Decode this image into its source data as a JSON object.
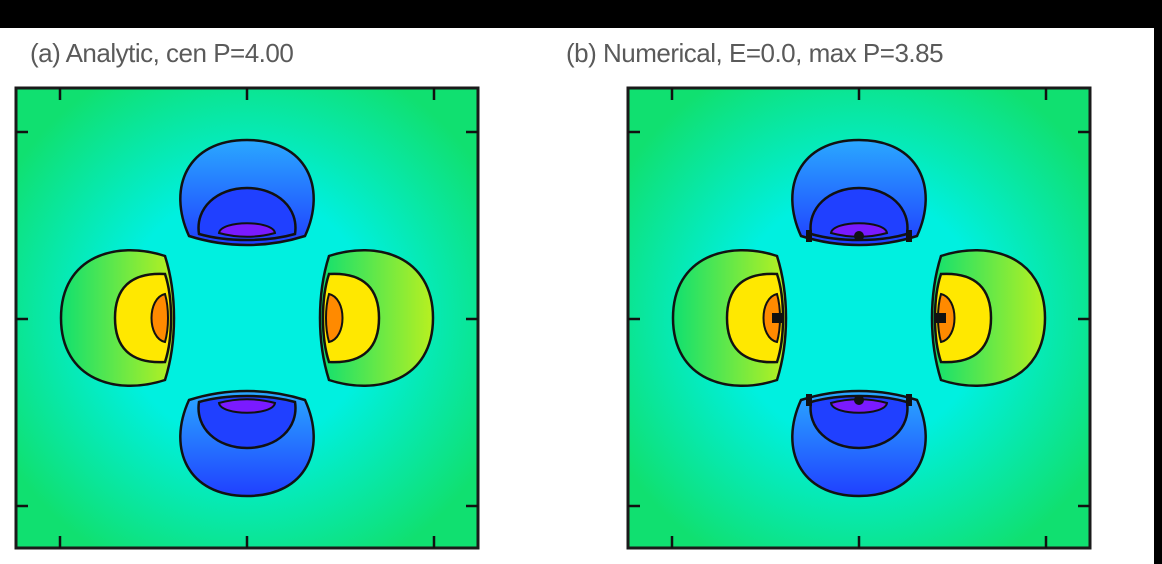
{
  "chart_data": [
    {
      "type": "heatmap",
      "panel_label": "(a)",
      "title": "(a) Analytic, cen P=4.00",
      "xlabel": "",
      "ylabel": "",
      "colormap": [
        "#7a1aff",
        "#2040ff",
        "#2aa8ff",
        "#00f0e0",
        "#10e070",
        "#b8f020",
        "#ffe800",
        "#ff8a00"
      ],
      "grid": false,
      "legend": "none"
    },
    {
      "type": "heatmap",
      "panel_label": "(b)",
      "title": "(b) Numerical, E=0.0, max P=3.85",
      "xlabel": "",
      "ylabel": "",
      "colormap": [
        "#7a1aff",
        "#2040ff",
        "#2aa8ff",
        "#00f0e0",
        "#10e070",
        "#b8f020",
        "#ffe800",
        "#ff8a00"
      ],
      "grid": false,
      "legend": "none"
    }
  ]
}
